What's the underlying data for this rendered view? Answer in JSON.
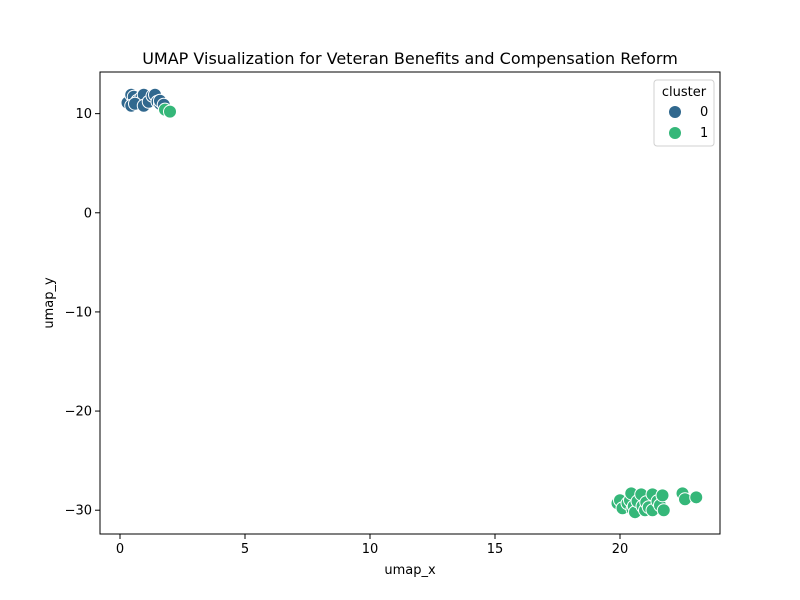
{
  "chart_data": {
    "type": "scatter",
    "title": "UMAP Visualization for Veteran Benefits and Compensation Reform",
    "xlabel": "umap_x",
    "ylabel": "umap_y",
    "xlim": [
      -0.8,
      24.0
    ],
    "ylim": [
      -32.4,
      14.2
    ],
    "xticks": [
      0,
      5,
      10,
      15,
      20
    ],
    "yticks": [
      10,
      0,
      -10,
      -20,
      -30
    ],
    "xtick_labels": [
      "0",
      "5",
      "10",
      "15",
      "20"
    ],
    "ytick_labels": [
      "10",
      "0",
      "−10",
      "−20",
      "−30"
    ],
    "grid": false,
    "legend": {
      "title": "cluster",
      "position": "top-right",
      "entries": [
        "0",
        "1"
      ]
    },
    "colors": {
      "0": "#31688e",
      "1": "#35b779"
    },
    "series": [
      {
        "name": "0",
        "points": [
          [
            0.3,
            11.1
          ],
          [
            0.45,
            11.9
          ],
          [
            0.55,
            11.7
          ],
          [
            0.7,
            11.3
          ],
          [
            0.85,
            11.6
          ],
          [
            0.95,
            11.9
          ],
          [
            0.45,
            10.8
          ],
          [
            0.6,
            11.0
          ],
          [
            0.95,
            10.8
          ],
          [
            1.15,
            11.2
          ],
          [
            1.3,
            11.8
          ],
          [
            1.4,
            11.9
          ],
          [
            1.5,
            11.2
          ],
          [
            1.6,
            11.0
          ],
          [
            1.6,
            11.3
          ],
          [
            1.75,
            10.9
          ]
        ]
      },
      {
        "name": "1",
        "points": [
          [
            1.8,
            10.4
          ],
          [
            2.0,
            10.2
          ],
          [
            19.9,
            -29.3
          ],
          [
            20.0,
            -29.0
          ],
          [
            20.1,
            -29.8
          ],
          [
            20.3,
            -29.3
          ],
          [
            20.4,
            -29.0
          ],
          [
            20.45,
            -28.3
          ],
          [
            20.5,
            -29.9
          ],
          [
            20.55,
            -29.6
          ],
          [
            20.6,
            -30.2
          ],
          [
            20.7,
            -29.1
          ],
          [
            20.85,
            -28.4
          ],
          [
            20.9,
            -29.6
          ],
          [
            21.0,
            -30.0
          ],
          [
            21.05,
            -29.2
          ],
          [
            21.15,
            -29.7
          ],
          [
            21.3,
            -28.4
          ],
          [
            21.3,
            -30.0
          ],
          [
            21.5,
            -29.1
          ],
          [
            21.6,
            -29.5
          ],
          [
            21.7,
            -28.5
          ],
          [
            21.75,
            -30.0
          ],
          [
            22.5,
            -28.3
          ],
          [
            22.6,
            -28.9
          ],
          [
            23.05,
            -28.7
          ]
        ]
      }
    ]
  }
}
